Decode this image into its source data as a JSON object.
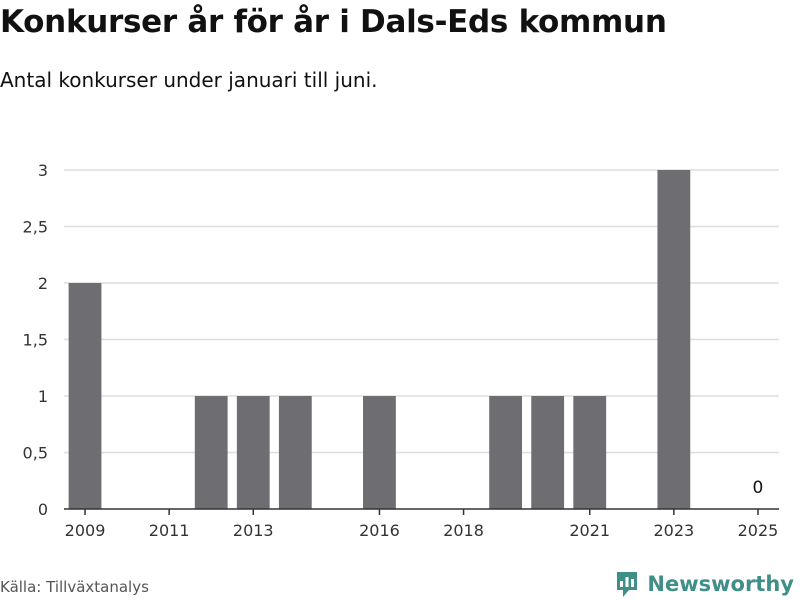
{
  "title": "Konkurser år för år i Dals-Eds kommun",
  "subtitle": "Antal konkurser under januari till juni.",
  "source": "Källa: Tillväxtanalys",
  "brand": {
    "name": "Newsworthy",
    "icon": "newsworthy-logo-icon",
    "color": "#3f8f88"
  },
  "colors": {
    "bar": "#6d6d72",
    "grid": "#dddddd",
    "axis": "#333333"
  },
  "chart_data": {
    "type": "bar",
    "title": "",
    "xlabel": "",
    "ylabel": "",
    "ylim": [
      0,
      3
    ],
    "yticks": [
      0,
      0.5,
      1,
      1.5,
      2,
      2.5,
      3
    ],
    "ytick_labels": [
      "0",
      "0,5",
      "1",
      "1,5",
      "2",
      "2,5",
      "3"
    ],
    "grid": "horizontal",
    "categories": [
      "2009",
      "2010",
      "2011",
      "2012",
      "2013",
      "2014",
      "2015",
      "2016",
      "2017",
      "2018",
      "2019",
      "2020",
      "2021",
      "2022",
      "2023",
      "2024",
      "2025"
    ],
    "values": [
      2,
      0,
      0,
      1,
      1,
      1,
      0,
      1,
      0,
      0,
      1,
      1,
      1,
      0,
      3,
      0,
      0
    ],
    "xtick_labels": [
      "2009",
      "2011",
      "2013",
      "2016",
      "2018",
      "2021",
      "2023",
      "2025"
    ],
    "data_labels": [
      {
        "category": "2025",
        "text": "0"
      }
    ]
  }
}
